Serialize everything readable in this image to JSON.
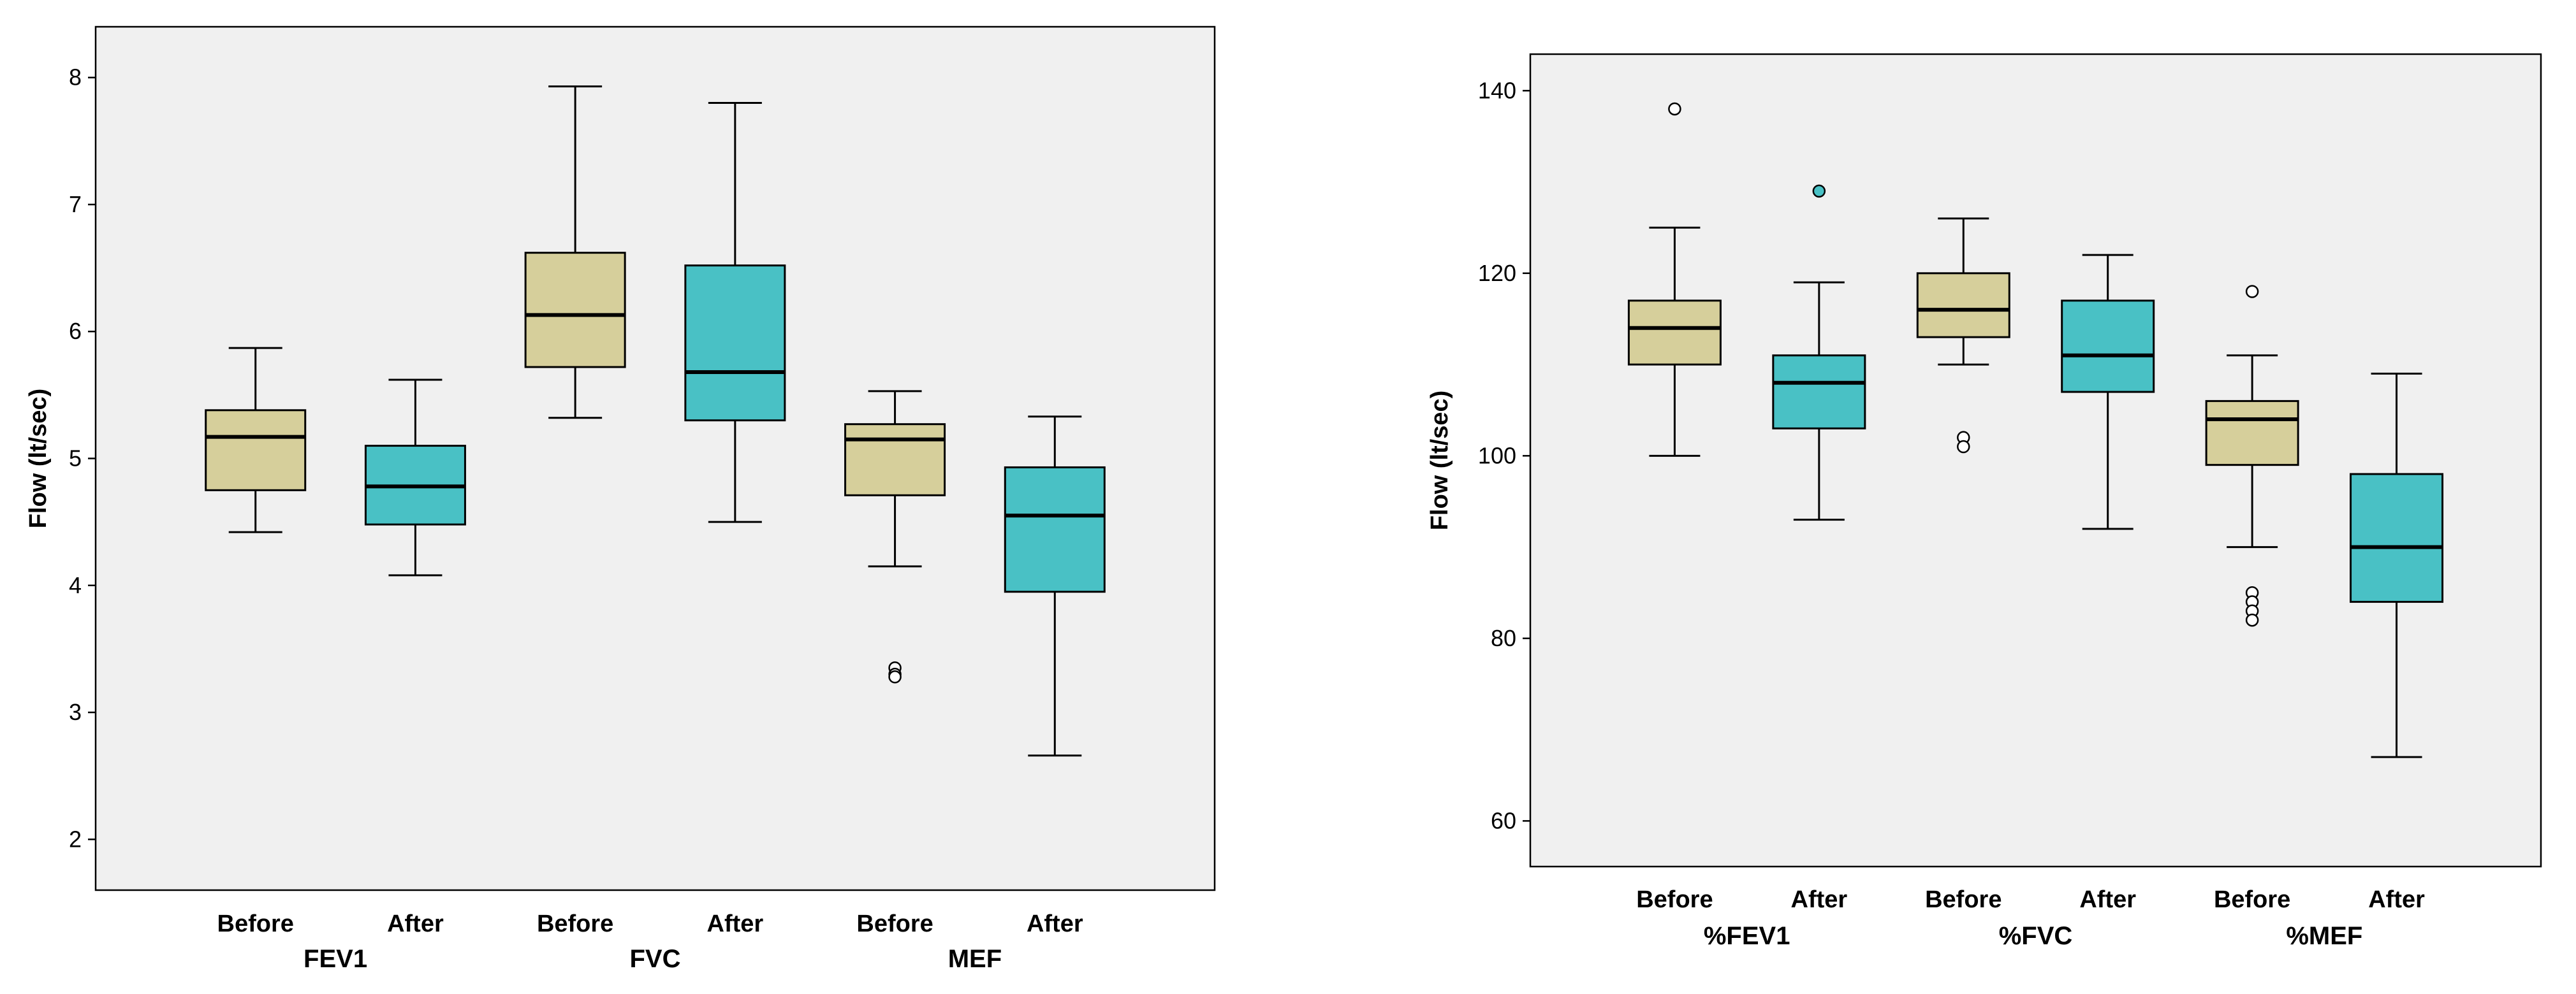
{
  "chart_data": [
    {
      "type": "box",
      "ylabel": "Flow (lt/sec)",
      "ylim": [
        1.6,
        8.4
      ],
      "yticks": [
        2,
        3,
        4,
        5,
        6,
        7,
        8
      ],
      "grid": false,
      "series_colors": {
        "Before": "#d6cf9b",
        "After": "#49c1c5"
      },
      "groups": [
        {
          "name": "FEV1",
          "boxes": [
            {
              "label": "Before",
              "min": 4.42,
              "q1": 4.75,
              "median": 5.17,
              "q3": 5.38,
              "max": 5.87,
              "outliers": []
            },
            {
              "label": "After",
              "min": 4.08,
              "q1": 4.48,
              "median": 4.78,
              "q3": 5.1,
              "max": 5.62,
              "outliers": []
            }
          ]
        },
        {
          "name": "FVC",
          "boxes": [
            {
              "label": "Before",
              "min": 5.32,
              "q1": 5.72,
              "median": 6.13,
              "q3": 6.62,
              "max": 7.93,
              "outliers": []
            },
            {
              "label": "After",
              "min": 4.5,
              "q1": 5.3,
              "median": 5.68,
              "q3": 6.52,
              "max": 7.8,
              "outliers": []
            }
          ]
        },
        {
          "name": "MEF",
          "boxes": [
            {
              "label": "Before",
              "min": 4.15,
              "q1": 4.71,
              "median": 5.15,
              "q3": 5.27,
              "max": 5.53,
              "outliers": [
                3.35,
                3.3,
                3.28
              ]
            },
            {
              "label": "After",
              "min": 2.66,
              "q1": 3.95,
              "median": 4.55,
              "q3": 4.93,
              "max": 5.33,
              "outliers": []
            }
          ]
        }
      ]
    },
    {
      "type": "box",
      "ylabel": "Flow (lt/sec)",
      "ylim": [
        55,
        144
      ],
      "yticks": [
        60,
        80,
        100,
        120,
        140
      ],
      "grid": false,
      "series_colors": {
        "Before": "#d6cf9b",
        "After": "#49c1c5"
      },
      "groups": [
        {
          "name": "%FEV1",
          "boxes": [
            {
              "label": "Before",
              "min": 100,
              "q1": 110,
              "median": 114,
              "q3": 117,
              "max": 125,
              "outliers": [
                138
              ]
            },
            {
              "label": "After",
              "min": 93,
              "q1": 103,
              "median": 108,
              "q3": 111,
              "max": 119,
              "outliers": [
                129
              ]
            }
          ]
        },
        {
          "name": "%FVC",
          "boxes": [
            {
              "label": "Before",
              "min": 110,
              "q1": 113,
              "median": 116,
              "q3": 120,
              "max": 126,
              "outliers": [
                102,
                101
              ]
            },
            {
              "label": "After",
              "min": 92,
              "q1": 107,
              "median": 111,
              "q3": 117,
              "max": 122,
              "outliers": []
            }
          ]
        },
        {
          "name": "%MEF",
          "boxes": [
            {
              "label": "Before",
              "min": 90,
              "q1": 99,
              "median": 104,
              "q3": 106,
              "max": 111,
              "outliers": [
                118,
                85,
                84,
                83,
                82
              ]
            },
            {
              "label": "After",
              "min": 67,
              "q1": 84,
              "median": 90,
              "q3": 98,
              "max": 109,
              "outliers": []
            }
          ]
        }
      ]
    }
  ]
}
